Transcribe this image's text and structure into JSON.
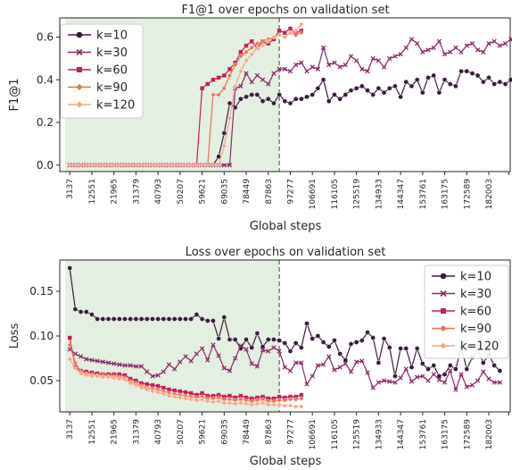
{
  "chart_data": [
    {
      "type": "line",
      "title": "F1@1 over epochs on validation set",
      "xlabel": "Global steps",
      "ylabel": "F1@1",
      "ylim": [
        -0.03,
        0.69
      ],
      "yticks": [
        "0.0",
        "0.2",
        "0.4",
        "0.6"
      ],
      "xticks": [
        "3137",
        "12551",
        "21965",
        "31379",
        "40793",
        "50207",
        "59621",
        "69035",
        "78449",
        "87863",
        "97277",
        "106691",
        "116105",
        "125519",
        "134933",
        "144347",
        "153761",
        "163175",
        "172589",
        "182003"
      ],
      "shaded_region_end_step": 92570,
      "legend_position": "upper-left",
      "grid": false,
      "series": [
        {
          "name": "k=10",
          "color": "#3b1a3f",
          "marker": "circle",
          "values": [
            0.0,
            0.0,
            0.0,
            0.0,
            0.0,
            0.0,
            0.0,
            0.0,
            0.0,
            0.0,
            0.0,
            0.0,
            0.0,
            0.0,
            0.0,
            0.0,
            0.0,
            0.0,
            0.0,
            0.0,
            0.0,
            0.0,
            0.0,
            0.0,
            0.0,
            0.0,
            0.0,
            0.04,
            0.15,
            0.29,
            0.27,
            0.31,
            0.32,
            0.33,
            0.33,
            0.3,
            0.31,
            0.29,
            0.33,
            0.3,
            0.29,
            0.31,
            0.31,
            0.32,
            0.33,
            0.36,
            0.4,
            0.3,
            0.33,
            0.31,
            0.33,
            0.35,
            0.36,
            0.37,
            0.35,
            0.33,
            0.36,
            0.34,
            0.36,
            0.37,
            0.32,
            0.39,
            0.37,
            0.4,
            0.34,
            0.41,
            0.42,
            0.34,
            0.4,
            0.38,
            0.37,
            0.44,
            0.44,
            0.43,
            0.42,
            0.39,
            0.41,
            0.38,
            0.39,
            0.38,
            0.4,
            0.42,
            0.44,
            0.48,
            0.39,
            0.46
          ]
        },
        {
          "name": "k=30",
          "color": "#8a2a6a",
          "marker": "x",
          "values": [
            0.0,
            0.0,
            0.0,
            0.0,
            0.0,
            0.0,
            0.0,
            0.0,
            0.0,
            0.0,
            0.0,
            0.0,
            0.0,
            0.0,
            0.0,
            0.0,
            0.0,
            0.0,
            0.0,
            0.0,
            0.0,
            0.0,
            0.0,
            0.0,
            0.0,
            0.0,
            0.0,
            0.0,
            0.0,
            0.0,
            0.36,
            0.37,
            0.43,
            0.39,
            0.42,
            0.4,
            0.38,
            0.43,
            0.45,
            0.45,
            0.44,
            0.47,
            0.48,
            0.44,
            0.46,
            0.45,
            0.55,
            0.47,
            0.48,
            0.46,
            0.47,
            0.51,
            0.49,
            0.45,
            0.44,
            0.5,
            0.49,
            0.46,
            0.5,
            0.51,
            0.52,
            0.55,
            0.59,
            0.57,
            0.53,
            0.54,
            0.55,
            0.58,
            0.52,
            0.53,
            0.55,
            0.53,
            0.56,
            0.57,
            0.54,
            0.53,
            0.57,
            0.58,
            0.56,
            0.57,
            0.59,
            0.55,
            0.56,
            0.54,
            0.57,
            0.57
          ]
        },
        {
          "name": "k=60",
          "color": "#c81e52",
          "marker": "square",
          "values": [
            0.0,
            0.0,
            0.0,
            0.0,
            0.0,
            0.0,
            0.0,
            0.0,
            0.0,
            0.0,
            0.0,
            0.0,
            0.0,
            0.0,
            0.0,
            0.0,
            0.0,
            0.0,
            0.0,
            0.0,
            0.0,
            0.0,
            0.0,
            0.0,
            0.36,
            0.38,
            0.4,
            0.41,
            0.42,
            0.45,
            0.48,
            0.53,
            0.56,
            0.58,
            0.55,
            0.58,
            0.57,
            0.59,
            0.63,
            0.62,
            0.64,
            0.62,
            0.63
          ]
        },
        {
          "name": "k=90",
          "color": "#ef6e4c",
          "marker": "diamond",
          "values": [
            0.0,
            0.0,
            0.0,
            0.0,
            0.0,
            0.0,
            0.0,
            0.0,
            0.0,
            0.0,
            0.0,
            0.0,
            0.0,
            0.0,
            0.0,
            0.0,
            0.0,
            0.0,
            0.0,
            0.0,
            0.0,
            0.0,
            0.0,
            0.0,
            0.0,
            0.0,
            0.33,
            0.33,
            0.36,
            0.42,
            0.47,
            0.51,
            0.53,
            0.55,
            0.57,
            0.58,
            0.59,
            0.6,
            0.61,
            0.6,
            0.62,
            0.61,
            0.62
          ]
        },
        {
          "name": "k=120",
          "color": "#f4a582",
          "marker": "diamond",
          "values": [
            0.0,
            0.0,
            0.0,
            0.0,
            0.0,
            0.0,
            0.0,
            0.0,
            0.0,
            0.0,
            0.0,
            0.0,
            0.0,
            0.0,
            0.0,
            0.0,
            0.0,
            0.0,
            0.0,
            0.0,
            0.0,
            0.0,
            0.0,
            0.0,
            0.0,
            0.0,
            0.0,
            0.0,
            0.09,
            0.22,
            0.37,
            0.44,
            0.49,
            0.52,
            0.55,
            0.56,
            0.58,
            0.6,
            0.61,
            0.6,
            0.62,
            0.63,
            0.66
          ]
        }
      ]
    },
    {
      "type": "line",
      "title": "Loss over epochs on validation set",
      "xlabel": "Global steps",
      "ylabel": "Loss",
      "ylim": [
        0.015,
        0.185
      ],
      "yticks": [
        "0.05",
        "0.10",
        "0.15"
      ],
      "xticks": [
        "3137",
        "12551",
        "21965",
        "31379",
        "40793",
        "50207",
        "59621",
        "69035",
        "78449",
        "87863",
        "97277",
        "106691",
        "116105",
        "125519",
        "134933",
        "144347",
        "153761",
        "163175",
        "172589",
        "182003"
      ],
      "shaded_region_end_step": 92570,
      "legend_position": "upper-right",
      "grid": false,
      "series": [
        {
          "name": "k=10",
          "color": "#3b1a3f",
          "marker": "circle",
          "values": [
            0.176,
            0.13,
            0.127,
            0.127,
            0.124,
            0.119,
            0.119,
            0.119,
            0.119,
            0.119,
            0.119,
            0.119,
            0.119,
            0.119,
            0.119,
            0.119,
            0.119,
            0.119,
            0.119,
            0.119,
            0.119,
            0.119,
            0.119,
            0.124,
            0.119,
            0.117,
            0.117,
            0.097,
            0.121,
            0.096,
            0.096,
            0.086,
            0.096,
            0.087,
            0.103,
            0.088,
            0.096,
            0.096,
            0.095,
            0.092,
            0.083,
            0.092,
            0.087,
            0.114,
            0.097,
            0.1,
            0.093,
            0.088,
            0.095,
            0.08,
            0.073,
            0.091,
            0.093,
            0.095,
            0.104,
            0.098,
            0.07,
            0.097,
            0.087,
            0.055,
            0.086,
            0.086,
            0.065,
            0.086,
            0.069,
            0.063,
            0.067,
            0.055,
            0.057,
            0.067,
            0.063,
            0.087,
            0.063,
            0.076,
            0.085,
            0.07,
            0.079,
            0.067,
            0.061
          ]
        },
        {
          "name": "k=30",
          "color": "#8a2a6a",
          "marker": "x",
          "values": [
            0.085,
            0.08,
            0.077,
            0.074,
            0.073,
            0.072,
            0.071,
            0.07,
            0.069,
            0.068,
            0.067,
            0.067,
            0.066,
            0.066,
            0.06,
            0.055,
            0.056,
            0.06,
            0.068,
            0.063,
            0.071,
            0.077,
            0.072,
            0.08,
            0.086,
            0.073,
            0.09,
            0.078,
            0.064,
            0.061,
            0.075,
            0.089,
            0.085,
            0.069,
            0.066,
            0.084,
            0.083,
            0.087,
            0.083,
            0.065,
            0.061,
            0.07,
            0.07,
            0.046,
            0.055,
            0.067,
            0.068,
            0.077,
            0.062,
            0.065,
            0.069,
            0.06,
            0.071,
            0.072,
            0.059,
            0.042,
            0.048,
            0.05,
            0.049,
            0.048,
            0.053,
            0.063,
            0.049,
            0.054,
            0.055,
            0.05,
            0.057,
            0.051,
            0.048,
            0.061,
            0.04,
            0.057,
            0.043,
            0.045,
            0.05,
            0.06,
            0.052,
            0.048,
            0.048
          ]
        },
        {
          "name": "k=60",
          "color": "#c81e52",
          "marker": "square",
          "values": [
            0.098,
            0.065,
            0.061,
            0.06,
            0.059,
            0.058,
            0.057,
            0.057,
            0.057,
            0.057,
            0.056,
            0.052,
            0.05,
            0.047,
            0.046,
            0.045,
            0.044,
            0.042,
            0.04,
            0.039,
            0.038,
            0.037,
            0.036,
            0.034,
            0.036,
            0.033,
            0.033,
            0.034,
            0.032,
            0.033,
            0.031,
            0.033,
            0.031,
            0.03,
            0.031,
            0.032,
            0.03,
            0.03,
            0.032,
            0.031,
            0.032,
            0.032,
            0.034
          ]
        },
        {
          "name": "k=90",
          "color": "#ef6e4c",
          "marker": "diamond",
          "values": [
            0.09,
            0.07,
            0.06,
            0.058,
            0.057,
            0.056,
            0.056,
            0.055,
            0.055,
            0.054,
            0.053,
            0.049,
            0.047,
            0.044,
            0.042,
            0.041,
            0.04,
            0.038,
            0.036,
            0.035,
            0.034,
            0.033,
            0.032,
            0.031,
            0.032,
            0.03,
            0.03,
            0.031,
            0.029,
            0.029,
            0.028,
            0.029,
            0.028,
            0.027,
            0.028,
            0.029,
            0.027,
            0.027,
            0.028,
            0.028,
            0.029,
            0.029,
            0.03
          ]
        },
        {
          "name": "k=120",
          "color": "#f4a582",
          "marker": "diamond",
          "values": [
            0.074,
            0.064,
            0.058,
            0.056,
            0.055,
            0.055,
            0.054,
            0.054,
            0.053,
            0.052,
            0.051,
            0.047,
            0.045,
            0.042,
            0.04,
            0.038,
            0.037,
            0.035,
            0.033,
            0.032,
            0.031,
            0.03,
            0.029,
            0.028,
            0.029,
            0.027,
            0.026,
            0.027,
            0.025,
            0.025,
            0.024,
            0.025,
            0.024,
            0.023,
            0.024,
            0.025,
            0.023,
            0.023,
            0.023,
            0.022,
            0.022,
            0.021,
            0.021
          ]
        }
      ]
    }
  ]
}
